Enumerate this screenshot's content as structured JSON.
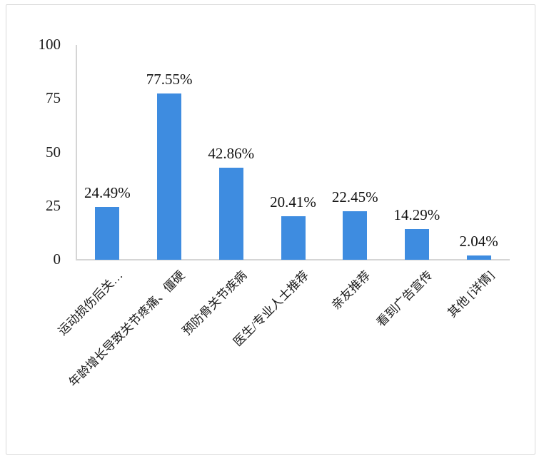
{
  "chart_data": {
    "type": "bar",
    "categories": [
      "运动损伤后关…",
      "年龄增长导致关节疼痛、僵硬",
      "预防骨关节疾病",
      "医生/专业人士推荐",
      "亲友推荐",
      "看到广告宣传",
      "其他 [详情]"
    ],
    "values": [
      24.49,
      77.55,
      42.86,
      20.41,
      22.45,
      14.29,
      2.04
    ],
    "value_labels": [
      "24.49%",
      "77.55%",
      "42.86%",
      "20.41%",
      "22.45%",
      "14.29%",
      "2.04%"
    ],
    "title": "",
    "xlabel": "",
    "ylabel": "",
    "ylim": [
      0,
      100
    ],
    "yticks": [
      0,
      25,
      50,
      75,
      100
    ],
    "grid": false,
    "legend": false,
    "category_rotation_deg": -45,
    "colors": {
      "bar": "#3E8CE0",
      "axis": "#d5d5d5",
      "text": "#1b1b1b",
      "frame_border": "#dadada",
      "background": "#ffffff"
    }
  }
}
